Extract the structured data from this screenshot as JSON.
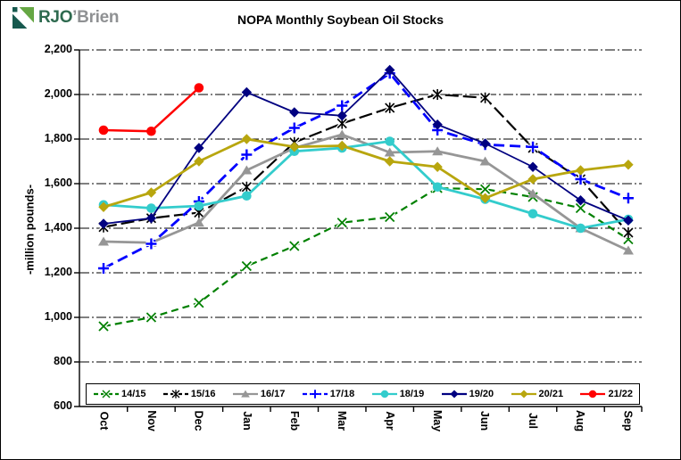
{
  "logo": {
    "text_primary": "RJO",
    "text_secondary": "’Brien",
    "color_primary": "#2E6A4F",
    "color_secondary": "#8F9193",
    "icon_green": "#66A744",
    "icon_teal": "#17594E"
  },
  "chart_data": {
    "type": "line",
    "title": "NOPA Monthly Soybean Oil Stocks",
    "xlabel": "",
    "ylabel": "-million pounds-",
    "categories": [
      "Oct",
      "Nov",
      "Dec",
      "Jan",
      "Feb",
      "Mar",
      "Apr",
      "May",
      "Jun",
      "Jul",
      "Aug",
      "Sep"
    ],
    "ylim": [
      600,
      2200
    ],
    "grid": "horizontal-dash-dot",
    "legend_position": "bottom-inside-box",
    "yticks": [
      {
        "value": 2200,
        "label": "2,200"
      },
      {
        "value": 2000,
        "label": "2,000"
      },
      {
        "value": 1800,
        "label": "1,800"
      },
      {
        "value": 1600,
        "label": "1,600"
      },
      {
        "value": 1400,
        "label": "1,400"
      },
      {
        "value": 1200,
        "label": "1,200"
      },
      {
        "value": 1000,
        "label": "1,000"
      },
      {
        "value": 800,
        "label": "800"
      },
      {
        "value": 600,
        "label": "600"
      }
    ],
    "series": [
      {
        "name": "14/15",
        "color": "#008000",
        "marker": "x",
        "dash": "8,5",
        "width": 2.2,
        "values": [
          960,
          1000,
          1065,
          1230,
          1320,
          1425,
          1450,
          1580,
          1575,
          1540,
          1490,
          1350
        ]
      },
      {
        "name": "15/16",
        "color": "#000000",
        "marker": "star",
        "dash": "15,5",
        "width": 2.2,
        "values": [
          1405,
          1445,
          1470,
          1585,
          1785,
          1870,
          1940,
          2000,
          1985,
          1760,
          1620,
          1380
        ]
      },
      {
        "name": "16/17",
        "color": "#969696",
        "marker": "triangle",
        "dash": null,
        "width": 2.8,
        "values": [
          1340,
          1335,
          1425,
          1660,
          1760,
          1820,
          1740,
          1745,
          1700,
          1555,
          1400,
          1300
        ]
      },
      {
        "name": "17/18",
        "color": "#0000FF",
        "marker": "plus",
        "dash": "12,6",
        "width": 2.8,
        "values": [
          1220,
          1330,
          1520,
          1730,
          1850,
          1950,
          2095,
          1840,
          1775,
          1765,
          1620,
          1535
        ]
      },
      {
        "name": "18/19",
        "color": "#33CCCC",
        "marker": "circle",
        "dash": null,
        "width": 2.8,
        "values": [
          1505,
          1490,
          1500,
          1545,
          1745,
          1760,
          1790,
          1585,
          1530,
          1465,
          1400,
          1440
        ]
      },
      {
        "name": "19/20",
        "color": "#000080",
        "marker": "diamond",
        "dash": null,
        "width": 1.8,
        "values": [
          1420,
          1445,
          1760,
          2010,
          1920,
          1905,
          2110,
          1865,
          1780,
          1675,
          1525,
          1435
        ]
      },
      {
        "name": "20/21",
        "color": "#B8A60E",
        "marker": "diamond",
        "dash": null,
        "width": 2.8,
        "values": [
          1495,
          1560,
          1700,
          1800,
          1765,
          1770,
          1700,
          1675,
          1535,
          1620,
          1660,
          1685
        ]
      },
      {
        "name": "21/22",
        "color": "#FF0000",
        "marker": "circle",
        "dash": null,
        "width": 2.5,
        "values": [
          1840,
          1835,
          2030,
          null,
          null,
          null,
          null,
          null,
          null,
          null,
          null,
          null
        ]
      }
    ]
  }
}
